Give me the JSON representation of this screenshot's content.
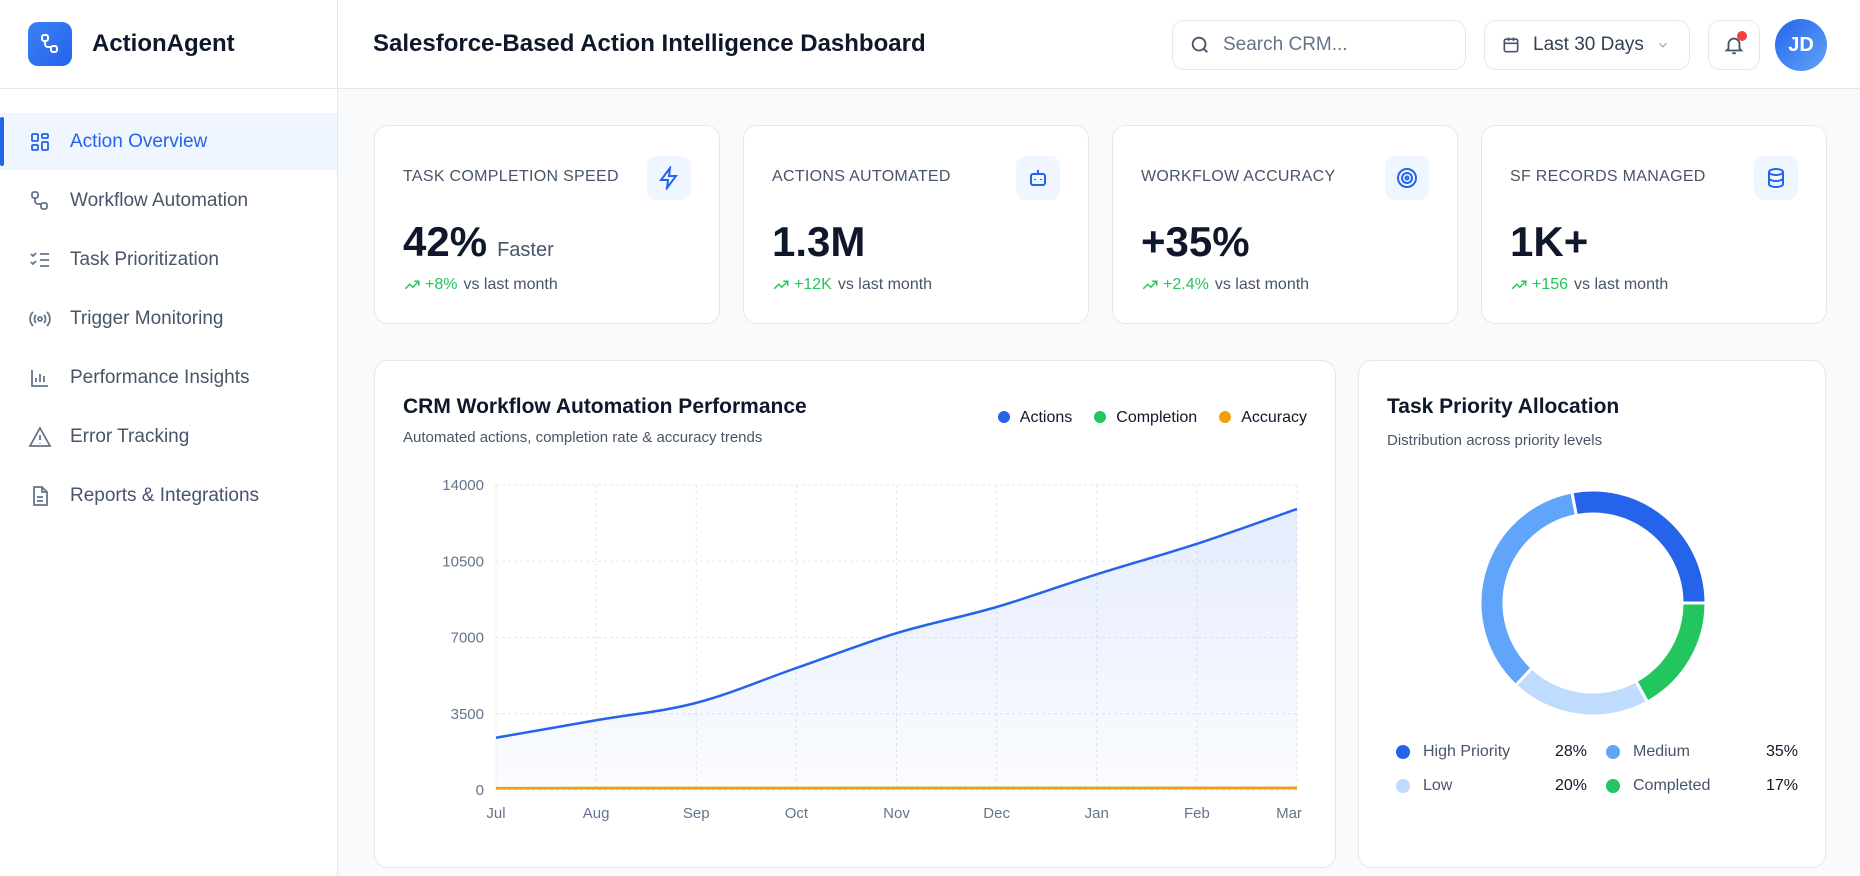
{
  "brand": {
    "name": "ActionAgent"
  },
  "sidebar": {
    "items": [
      {
        "label": "Action Overview",
        "icon": "grid-icon",
        "active": true
      },
      {
        "label": "Workflow Automation",
        "icon": "workflow-icon"
      },
      {
        "label": "Task Prioritization",
        "icon": "list-check-icon"
      },
      {
        "label": "Trigger Monitoring",
        "icon": "radio-icon"
      },
      {
        "label": "Performance Insights",
        "icon": "bar-chart-icon"
      },
      {
        "label": "Error Tracking",
        "icon": "alert-triangle-icon"
      },
      {
        "label": "Reports & Integrations",
        "icon": "file-text-icon"
      }
    ]
  },
  "header": {
    "title": "Salesforce-Based Action Intelligence Dashboard",
    "search_placeholder": "Search CRM...",
    "date_range": "Last 30 Days",
    "avatar": "JD"
  },
  "kpis": [
    {
      "label": "TASK COMPLETION SPEED",
      "value": "42%",
      "suffix": "Faster",
      "change": "+8%",
      "change_text": "vs last month",
      "icon": "zap-icon"
    },
    {
      "label": "ACTIONS AUTOMATED",
      "value": "1.3M",
      "suffix": "",
      "change": "+12K",
      "change_text": "vs last month",
      "icon": "bot-icon"
    },
    {
      "label": "WORKFLOW ACCURACY",
      "value": "+35%",
      "suffix": "",
      "change": "+2.4%",
      "change_text": "vs last month",
      "icon": "target-icon"
    },
    {
      "label": "SF RECORDS MANAGED",
      "value": "1K+",
      "suffix": "",
      "change": "+156",
      "change_text": "vs last month",
      "icon": "database-icon"
    }
  ],
  "colors": {
    "accent": "#2563eb",
    "up": "#22c55e",
    "actions": "#2563eb",
    "completion": "#22c55e",
    "accuracy": "#f59e0b"
  },
  "chart_data": [
    {
      "type": "line",
      "title": "CRM Workflow Automation Performance",
      "subtitle": "Automated actions, completion rate & accuracy trends",
      "categories": [
        "Jul",
        "Aug",
        "Sep",
        "Oct",
        "Nov",
        "Dec",
        "Jan",
        "Feb",
        "Mar"
      ],
      "yticks": [
        "0",
        "3500",
        "7000",
        "10500",
        "14000"
      ],
      "ylim": [
        0,
        14000
      ],
      "grid": true,
      "legend": "top-right",
      "series": [
        {
          "name": "Actions",
          "color": "#2563eb",
          "area": true,
          "values": [
            2400,
            3200,
            4000,
            5600,
            7200,
            8400,
            9900,
            11300,
            12900
          ]
        },
        {
          "name": "Completion",
          "color": "#22c55e",
          "values": [
            82,
            84,
            86,
            88,
            89,
            90,
            91,
            92,
            93
          ]
        },
        {
          "name": "Accuracy",
          "color": "#f59e0b",
          "values": [
            88,
            89,
            90,
            91,
            92,
            93,
            94,
            95,
            96
          ]
        }
      ]
    },
    {
      "type": "pie",
      "donut": true,
      "title": "Task Priority Allocation",
      "subtitle": "Distribution across priority levels",
      "slices": [
        {
          "label": "High Priority",
          "value": 28,
          "pct": "28%",
          "color": "#2563eb"
        },
        {
          "label": "Completed",
          "value": 17,
          "pct": "17%",
          "color": "#22c55e"
        },
        {
          "label": "Low",
          "value": 20,
          "pct": "20%",
          "color": "#bfdbfe"
        },
        {
          "label": "Medium",
          "value": 35,
          "pct": "35%",
          "color": "#60a5fa"
        }
      ],
      "legend_order": [
        "High Priority",
        "Medium",
        "Low",
        "Completed"
      ]
    }
  ]
}
